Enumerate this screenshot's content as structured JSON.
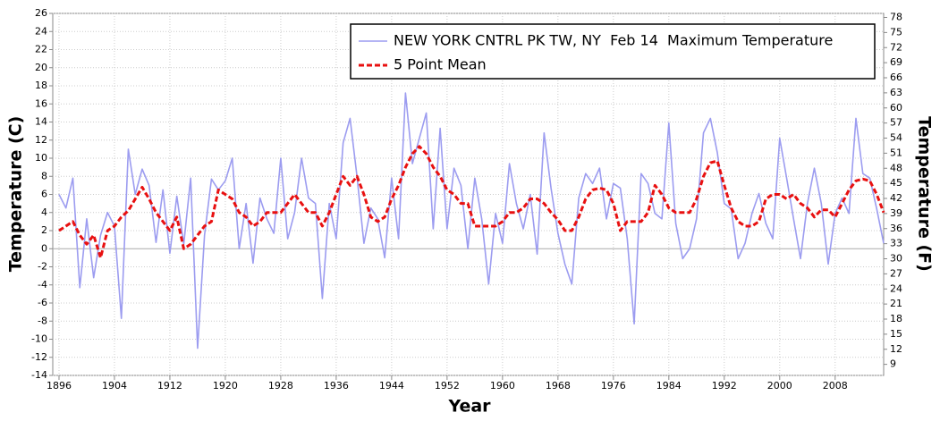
{
  "chart_data": {
    "type": "line",
    "legend_position": "upper right",
    "grid": true,
    "x_label": "Year",
    "y_label": "Temperature (C)",
    "y2_label": "Temperature (F)",
    "xlim": [
      1895.1,
      2015
    ],
    "xticks": [
      1896,
      1904,
      1912,
      1920,
      1928,
      1936,
      1944,
      1952,
      1960,
      1968,
      1976,
      1984,
      1992,
      2000,
      2008
    ],
    "ylim": [
      -14,
      26
    ],
    "yticks": [
      -14,
      -12,
      -10,
      -8,
      -6,
      -4,
      -2,
      0,
      2,
      4,
      6,
      8,
      10,
      12,
      14,
      16,
      18,
      20,
      22,
      24,
      26
    ],
    "y2lim": [
      6.8,
      78.8
    ],
    "y2ticks": [
      9,
      12,
      15,
      18,
      21,
      24,
      27,
      30,
      33,
      36,
      39,
      42,
      45,
      48,
      51,
      54,
      57,
      60,
      63,
      66,
      69,
      72,
      75,
      78
    ],
    "x": [
      1896,
      1897,
      1898,
      1899,
      1900,
      1901,
      1902,
      1903,
      1904,
      1905,
      1906,
      1907,
      1908,
      1909,
      1910,
      1911,
      1912,
      1913,
      1914,
      1915,
      1916,
      1917,
      1918,
      1919,
      1920,
      1921,
      1922,
      1923,
      1924,
      1925,
      1926,
      1927,
      1928,
      1929,
      1930,
      1931,
      1932,
      1933,
      1934,
      1935,
      1936,
      1937,
      1938,
      1939,
      1940,
      1941,
      1942,
      1943,
      1944,
      1945,
      1946,
      1947,
      1948,
      1949,
      1950,
      1951,
      1952,
      1953,
      1954,
      1955,
      1956,
      1957,
      1958,
      1959,
      1960,
      1961,
      1962,
      1963,
      1964,
      1965,
      1966,
      1967,
      1968,
      1969,
      1970,
      1971,
      1972,
      1973,
      1974,
      1975,
      1976,
      1977,
      1978,
      1979,
      1980,
      1981,
      1982,
      1983,
      1984,
      1985,
      1986,
      1987,
      1988,
      1989,
      1990,
      1991,
      1992,
      1993,
      1994,
      1995,
      1996,
      1997,
      1998,
      1999,
      2000,
      2001,
      2002,
      2003,
      2004,
      2005,
      2006,
      2007,
      2008,
      2009,
      2010,
      2011,
      2012,
      2013,
      2014,
      2015
    ],
    "series": [
      {
        "name": "NEW YORK CNTRL PK TW, NY  Feb 14  Maximum Temperature",
        "color": "#9c9cf0",
        "style": "solid",
        "values": [
          6,
          4.5,
          7.8,
          -4.3,
          3.3,
          -3.2,
          1.5,
          4,
          2.5,
          -7.7,
          11,
          6,
          8.8,
          7,
          0.7,
          6.5,
          -0.5,
          5.8,
          0.5,
          7.8,
          -11,
          1.5,
          7.7,
          6.5,
          7.5,
          10,
          0,
          5,
          -1.6,
          5.6,
          3.3,
          1.7,
          10,
          1.1,
          4,
          10,
          5.6,
          5,
          -5.5,
          5,
          1.1,
          11.7,
          14.4,
          8,
          0.6,
          4.5,
          3.3,
          -1,
          7.8,
          1.1,
          17.2,
          9.4,
          12.2,
          15,
          2.2,
          13.3,
          2.2,
          8.9,
          7,
          0,
          7.8,
          3.3,
          -3.9,
          3.9,
          0.6,
          9.4,
          5,
          2.2,
          6,
          -0.6,
          12.8,
          6.7,
          1.7,
          -1.7,
          -3.9,
          5.6,
          8.3,
          7.2,
          8.9,
          3.3,
          7.2,
          6.7,
          1.1,
          -8.3,
          8.3,
          7.2,
          3.9,
          3.3,
          13.9,
          2.8,
          -1.1,
          0,
          3.3,
          12.8,
          14.4,
          10.6,
          5,
          4.4,
          -1.1,
          0.6,
          3.9,
          6.1,
          2.8,
          1.1,
          12.2,
          7.8,
          3.3,
          -1.1,
          5,
          8.9,
          5,
          -1.7,
          3.9,
          5.6,
          3.9,
          14.4,
          8.3,
          7.8,
          4.4,
          0.6
        ]
      },
      {
        "name": "5 Point Mean",
        "color": "#e81010",
        "style": "dashed",
        "values": [
          2,
          2.5,
          3,
          1.5,
          0.5,
          1.5,
          -1,
          2,
          2.5,
          3.5,
          4.2,
          5.5,
          6.8,
          5.5,
          4,
          3,
          2,
          3.5,
          0,
          0.5,
          1.5,
          2.5,
          3,
          6.5,
          6,
          5.5,
          4,
          3.5,
          2.5,
          3,
          4,
          4,
          4,
          5,
          6,
          5,
          4,
          4,
          2.5,
          4,
          6,
          8,
          7,
          8,
          6,
          3.5,
          3,
          3.5,
          5.5,
          7,
          9,
          10.5,
          11.3,
          10.5,
          9,
          8,
          6.5,
          6,
          5,
          5,
          2.5,
          2.5,
          2.5,
          2.5,
          3,
          4,
          4,
          4.5,
          5.5,
          5.5,
          5,
          4,
          3.2,
          2,
          2,
          3.5,
          5.5,
          6.5,
          6.7,
          6.5,
          5,
          2,
          3,
          3,
          3,
          4,
          7,
          6,
          4.5,
          4,
          4,
          4,
          5.5,
          8,
          9.5,
          9.7,
          7,
          4.5,
          3,
          2.5,
          2.5,
          3,
          5.5,
          6,
          6,
          5.5,
          6,
          5,
          4.5,
          3.5,
          4.3,
          4.3,
          3.5,
          5,
          6.5,
          7.5,
          7.7,
          7.5,
          6,
          4
        ]
      }
    ]
  }
}
